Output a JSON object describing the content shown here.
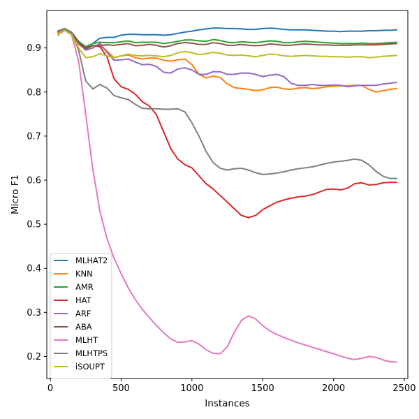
{
  "chart_data": {
    "type": "line",
    "title": "",
    "xlabel": "Instances",
    "ylabel": "Micro F1",
    "xlim": [
      -25,
      2525
    ],
    "ylim": [
      0.15,
      0.985
    ],
    "xticks": [
      0,
      500,
      1000,
      1500,
      2000,
      2500
    ],
    "yticks": [
      0.2,
      0.3,
      0.4,
      0.5,
      0.6,
      0.7,
      0.8,
      0.9
    ],
    "grid": false,
    "legend_position": "lower-left",
    "x": [
      50,
      100,
      150,
      200,
      250,
      300,
      350,
      400,
      450,
      500,
      550,
      600,
      650,
      700,
      750,
      800,
      850,
      900,
      950,
      1000,
      1050,
      1100,
      1150,
      1200,
      1250,
      1300,
      1350,
      1400,
      1450,
      1500,
      1550,
      1600,
      1650,
      1700,
      1750,
      1800,
      1850,
      1900,
      1950,
      2000,
      2050,
      2100,
      2150,
      2200,
      2250,
      2300,
      2350,
      2400,
      2450
    ],
    "series": [
      {
        "name": "MLHAT2",
        "color": "#1f77b4",
        "values": [
          0.938,
          0.944,
          0.935,
          0.914,
          0.902,
          0.91,
          0.922,
          0.924,
          0.924,
          0.929,
          0.931,
          0.931,
          0.93,
          0.93,
          0.93,
          0.929,
          0.93,
          0.933,
          0.936,
          0.938,
          0.941,
          0.943,
          0.945,
          0.945,
          0.944,
          0.944,
          0.943,
          0.942,
          0.942,
          0.944,
          0.945,
          0.944,
          0.942,
          0.941,
          0.941,
          0.941,
          0.94,
          0.939,
          0.938,
          0.938,
          0.937,
          0.938,
          0.938,
          0.938,
          0.939,
          0.939,
          0.94,
          0.94,
          0.941
        ]
      },
      {
        "name": "KNN",
        "color": "#ff7f0e",
        "values": [
          0.934,
          0.943,
          0.932,
          0.908,
          0.897,
          0.905,
          0.906,
          0.893,
          0.878,
          0.882,
          0.884,
          0.878,
          0.875,
          0.877,
          0.877,
          0.872,
          0.87,
          0.873,
          0.875,
          0.862,
          0.84,
          0.832,
          0.836,
          0.833,
          0.818,
          0.81,
          0.808,
          0.806,
          0.803,
          0.805,
          0.81,
          0.811,
          0.807,
          0.806,
          0.809,
          0.81,
          0.808,
          0.809,
          0.812,
          0.813,
          0.814,
          0.814,
          0.815,
          0.815,
          0.806,
          0.8,
          0.803,
          0.806,
          0.808
        ]
      },
      {
        "name": "AMR",
        "color": "#2ca02c",
        "values": [
          0.937,
          0.944,
          0.936,
          0.915,
          0.903,
          0.91,
          0.913,
          0.912,
          0.912,
          0.914,
          0.916,
          0.912,
          0.913,
          0.913,
          0.913,
          0.91,
          0.912,
          0.915,
          0.918,
          0.918,
          0.916,
          0.915,
          0.919,
          0.917,
          0.913,
          0.912,
          0.914,
          0.913,
          0.912,
          0.914,
          0.916,
          0.915,
          0.912,
          0.912,
          0.914,
          0.915,
          0.914,
          0.913,
          0.912,
          0.911,
          0.91,
          0.91,
          0.91,
          0.911,
          0.91,
          0.91,
          0.911,
          0.912,
          0.913
        ]
      },
      {
        "name": "HAT",
        "color": "#d62728",
        "values": [
          0.936,
          0.944,
          0.934,
          0.912,
          0.9,
          0.905,
          0.903,
          0.88,
          0.83,
          0.812,
          0.806,
          0.795,
          0.778,
          0.768,
          0.748,
          0.71,
          0.672,
          0.648,
          0.635,
          0.628,
          0.61,
          0.592,
          0.58,
          0.565,
          0.55,
          0.535,
          0.52,
          0.515,
          0.52,
          0.533,
          0.542,
          0.55,
          0.555,
          0.559,
          0.562,
          0.564,
          0.567,
          0.573,
          0.579,
          0.58,
          0.578,
          0.582,
          0.592,
          0.594,
          0.589,
          0.59,
          0.594,
          0.595,
          0.595
        ]
      },
      {
        "name": "ARF",
        "color": "#9467bd",
        "values": [
          0.937,
          0.944,
          0.935,
          0.91,
          0.895,
          0.9,
          0.91,
          0.89,
          0.872,
          0.873,
          0.875,
          0.868,
          0.862,
          0.863,
          0.858,
          0.845,
          0.843,
          0.852,
          0.855,
          0.85,
          0.84,
          0.84,
          0.846,
          0.846,
          0.84,
          0.84,
          0.843,
          0.843,
          0.84,
          0.835,
          0.838,
          0.84,
          0.835,
          0.82,
          0.815,
          0.815,
          0.817,
          0.815,
          0.815,
          0.816,
          0.815,
          0.812,
          0.814,
          0.815,
          0.815,
          0.815,
          0.818,
          0.82,
          0.822
        ]
      },
      {
        "name": "ABA",
        "color": "#8c564b",
        "values": [
          0.937,
          0.944,
          0.933,
          0.911,
          0.898,
          0.905,
          0.906,
          0.907,
          0.906,
          0.908,
          0.91,
          0.905,
          0.906,
          0.908,
          0.906,
          0.902,
          0.905,
          0.91,
          0.912,
          0.911,
          0.908,
          0.908,
          0.912,
          0.91,
          0.906,
          0.906,
          0.908,
          0.906,
          0.905,
          0.906,
          0.909,
          0.908,
          0.906,
          0.906,
          0.908,
          0.909,
          0.908,
          0.907,
          0.907,
          0.906,
          0.906,
          0.906,
          0.907,
          0.907,
          0.907,
          0.907,
          0.908,
          0.909,
          0.91
        ]
      },
      {
        "name": "MLHT",
        "color": "#e377c2",
        "values": [
          0.928,
          0.94,
          0.93,
          0.87,
          0.75,
          0.625,
          0.53,
          0.468,
          0.423,
          0.388,
          0.356,
          0.329,
          0.307,
          0.288,
          0.27,
          0.254,
          0.24,
          0.232,
          0.233,
          0.236,
          0.228,
          0.215,
          0.207,
          0.206,
          0.222,
          0.255,
          0.282,
          0.292,
          0.285,
          0.27,
          0.258,
          0.25,
          0.243,
          0.237,
          0.231,
          0.226,
          0.221,
          0.216,
          0.211,
          0.206,
          0.201,
          0.196,
          0.193,
          0.196,
          0.2,
          0.198,
          0.192,
          0.188,
          0.187
        ]
      },
      {
        "name": "MLHTPS",
        "color": "#7f7f7f",
        "values": [
          0.937,
          0.944,
          0.933,
          0.895,
          0.825,
          0.807,
          0.817,
          0.809,
          0.792,
          0.787,
          0.783,
          0.772,
          0.763,
          0.762,
          0.762,
          0.761,
          0.761,
          0.762,
          0.755,
          0.73,
          0.7,
          0.665,
          0.64,
          0.627,
          0.623,
          0.626,
          0.627,
          0.623,
          0.617,
          0.613,
          0.614,
          0.616,
          0.619,
          0.623,
          0.626,
          0.628,
          0.63,
          0.634,
          0.638,
          0.641,
          0.643,
          0.645,
          0.648,
          0.645,
          0.635,
          0.62,
          0.609,
          0.604,
          0.604
        ]
      },
      {
        "name": "iSOUPT",
        "color": "#bcbd22",
        "values": [
          0.93,
          0.94,
          0.93,
          0.9,
          0.878,
          0.88,
          0.887,
          0.882,
          0.878,
          0.882,
          0.886,
          0.883,
          0.882,
          0.883,
          0.882,
          0.88,
          0.883,
          0.889,
          0.892,
          0.889,
          0.885,
          0.887,
          0.89,
          0.888,
          0.884,
          0.883,
          0.884,
          0.882,
          0.88,
          0.883,
          0.886,
          0.885,
          0.882,
          0.881,
          0.882,
          0.883,
          0.882,
          0.881,
          0.881,
          0.88,
          0.88,
          0.879,
          0.88,
          0.88,
          0.878,
          0.879,
          0.881,
          0.882,
          0.883
        ]
      }
    ]
  }
}
